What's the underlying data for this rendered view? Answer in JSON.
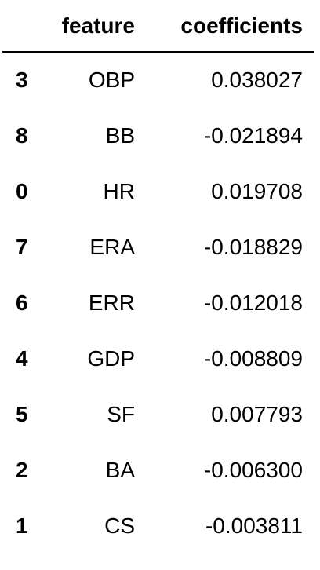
{
  "table": {
    "index_header": "",
    "columns": [
      "feature",
      "coefficients"
    ],
    "rows": [
      {
        "index": "3",
        "feature": "OBP",
        "coefficient": "0.038027"
      },
      {
        "index": "8",
        "feature": "BB",
        "coefficient": "-0.021894"
      },
      {
        "index": "0",
        "feature": "HR",
        "coefficient": "0.019708"
      },
      {
        "index": "7",
        "feature": "ERA",
        "coefficient": "-0.018829"
      },
      {
        "index": "6",
        "feature": "ERR",
        "coefficient": "-0.012018"
      },
      {
        "index": "4",
        "feature": "GDP",
        "coefficient": "-0.008809"
      },
      {
        "index": "5",
        "feature": "SF",
        "coefficient": "0.007793"
      },
      {
        "index": "2",
        "feature": "BA",
        "coefficient": "-0.006300"
      },
      {
        "index": "1",
        "feature": "CS",
        "coefficient": "-0.003811"
      }
    ]
  },
  "colors": {
    "text": "#000000",
    "background": "#ffffff",
    "header_rule": "#000000",
    "alt_row": "#f5f5f5"
  }
}
